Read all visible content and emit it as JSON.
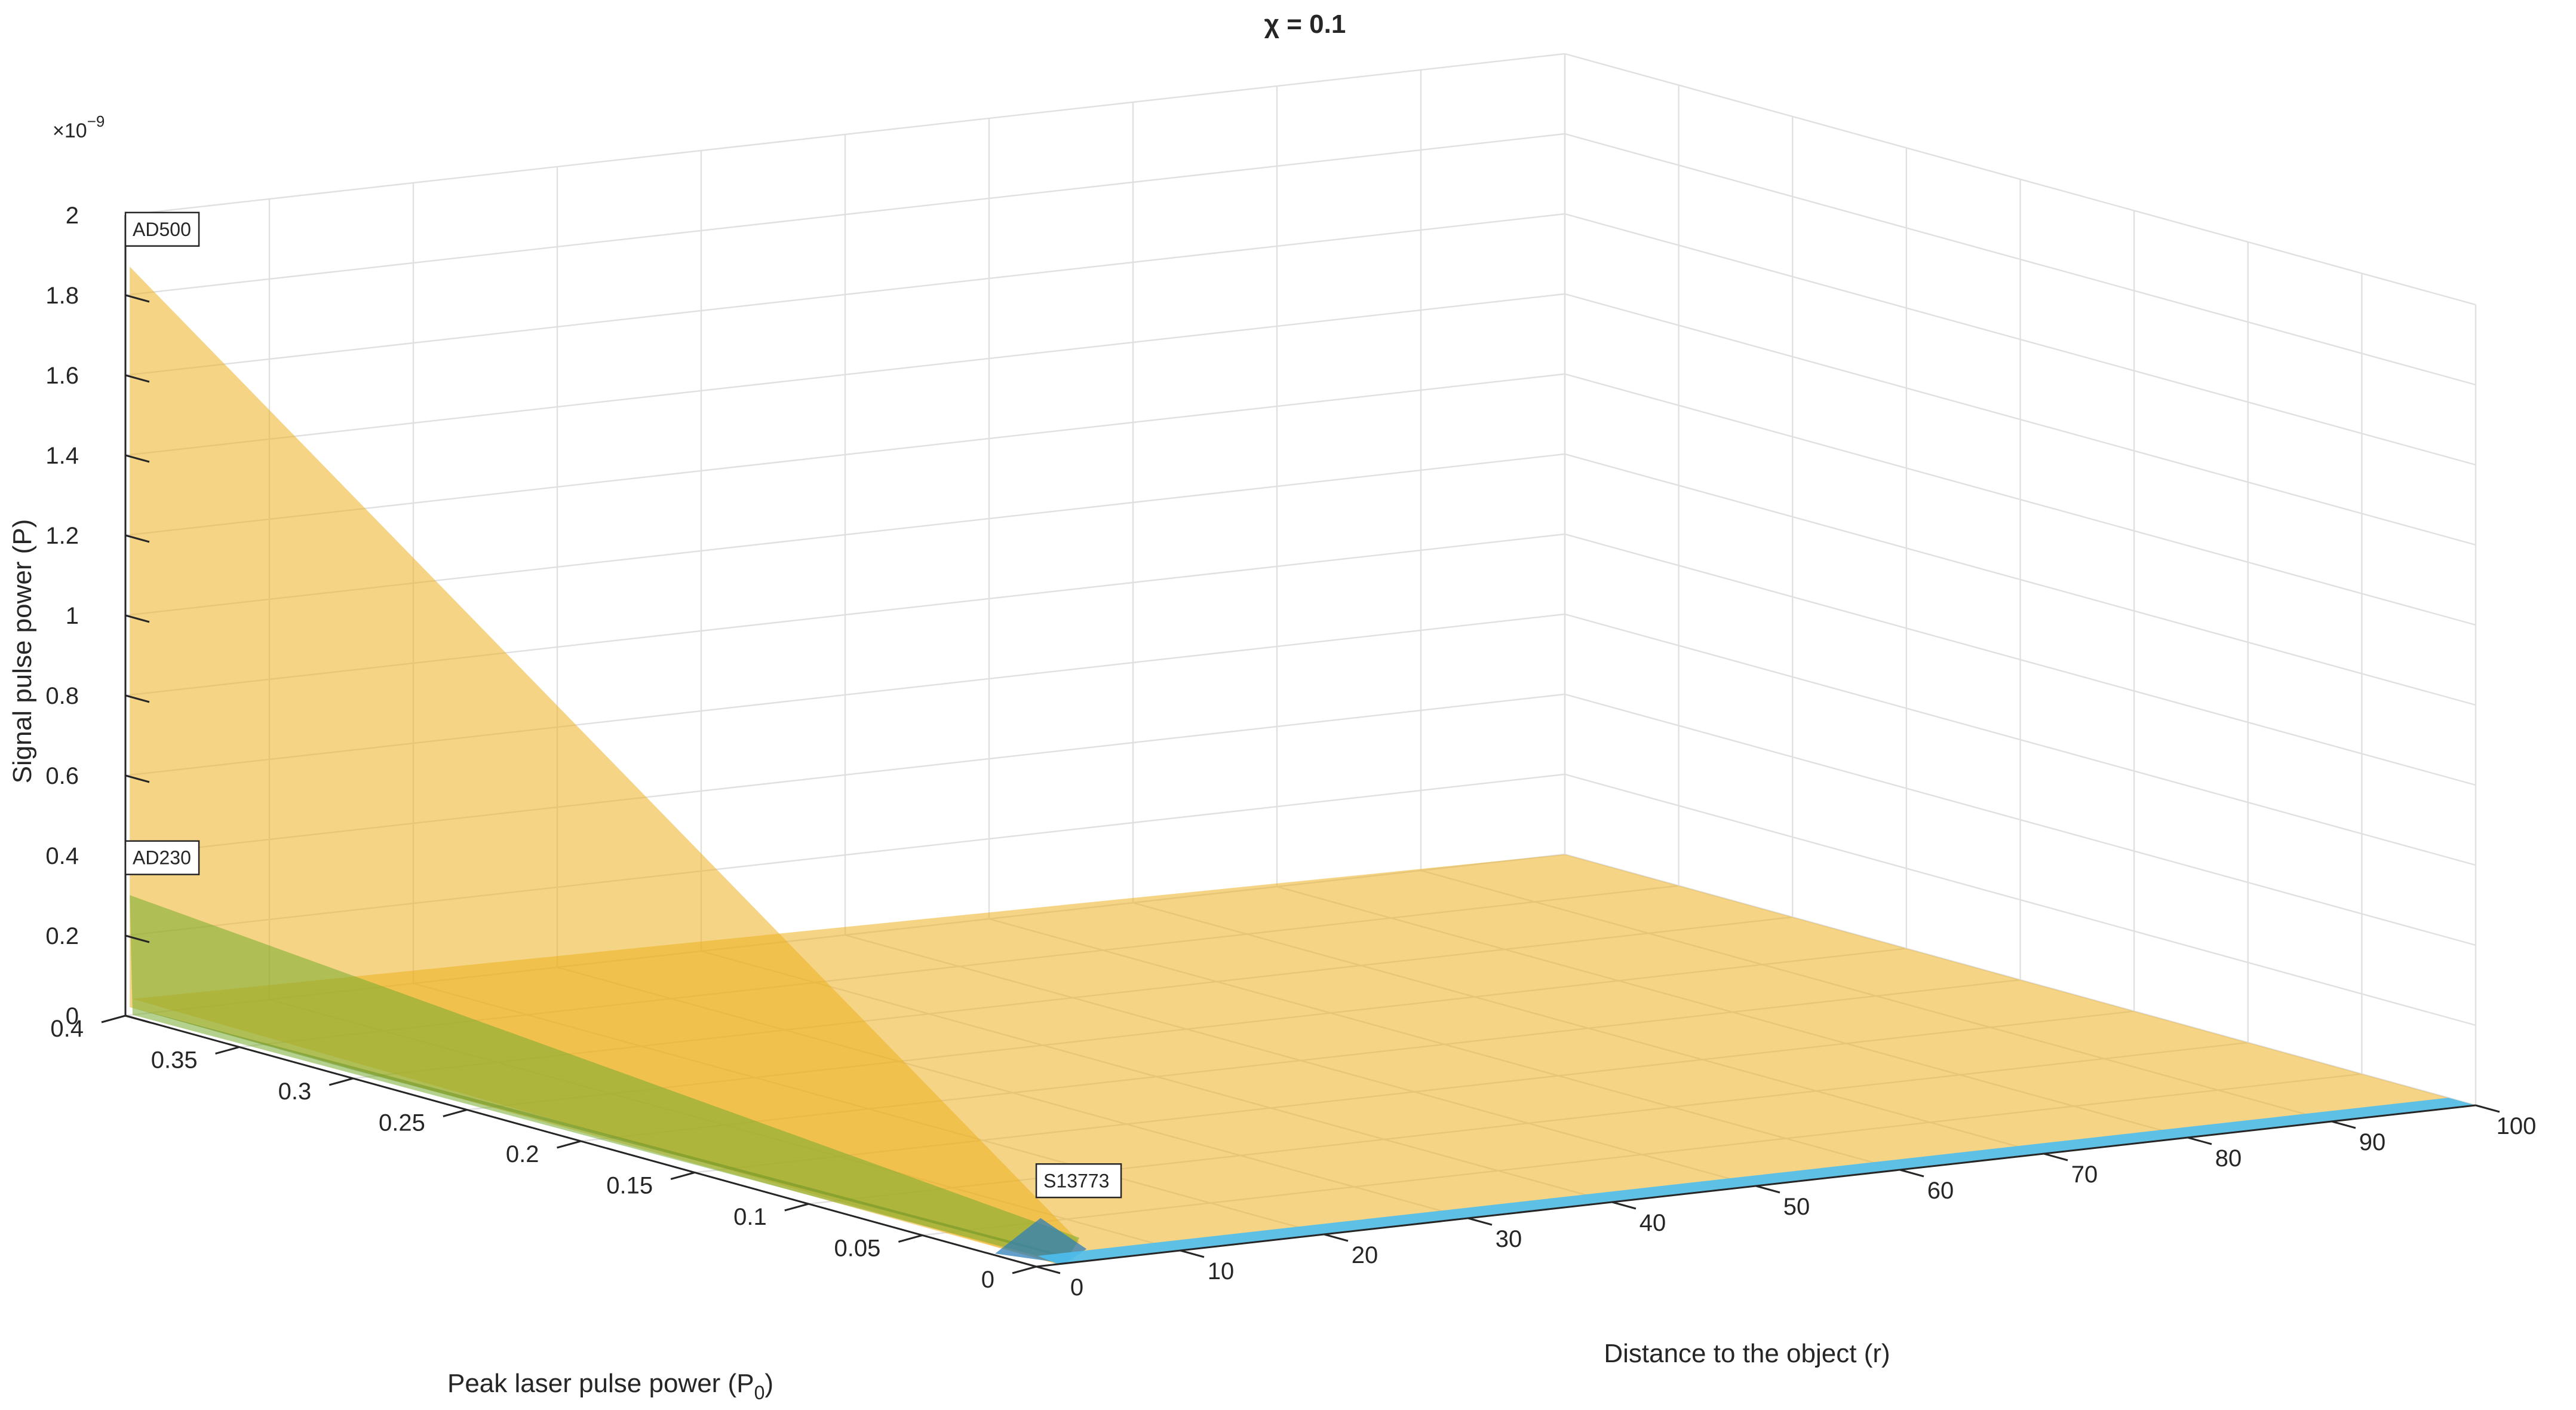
{
  "chart_data": {
    "type": "surface",
    "title": "χ = 0.1",
    "xlabel": "Distance to the object (r)",
    "ylabel": "Peak laser pulse power (P0)",
    "ylabel_main": "Peak laser pulse power (P",
    "ylabel_sub": "0",
    "ylabel_close": ")",
    "zlabel": "Signal pulse power (P)",
    "z_multiplier": "×10",
    "z_exponent": "−9",
    "xlim": [
      0,
      100
    ],
    "ylim": [
      0,
      0.4
    ],
    "zlim": [
      0,
      2
    ],
    "x_ticks": [
      "0",
      "10",
      "20",
      "30",
      "40",
      "50",
      "60",
      "70",
      "80",
      "90",
      "100"
    ],
    "y_ticks": [
      "0",
      "0.05",
      "0.1",
      "0.15",
      "0.2",
      "0.25",
      "0.3",
      "0.35",
      "0.4"
    ],
    "z_ticks": [
      "0",
      "0.2",
      "0.4",
      "0.6",
      "0.8",
      "1",
      "1.2",
      "1.4",
      "1.6",
      "1.8",
      "2"
    ],
    "grid": true,
    "series": [
      {
        "name": "AD500",
        "color": "#EDB120",
        "peak": {
          "x": 0.5,
          "y": 0.4,
          "z": 1.87
        }
      },
      {
        "name": "AD230",
        "color": "#77AC30",
        "peak": {
          "x": 0.5,
          "y": 0.4,
          "z": 0.3
        }
      },
      {
        "name": "S13773",
        "color": "#4DBEEE",
        "peak": {
          "x": 0.5,
          "y": 0.0,
          "z": 0.12
        }
      }
    ]
  }
}
